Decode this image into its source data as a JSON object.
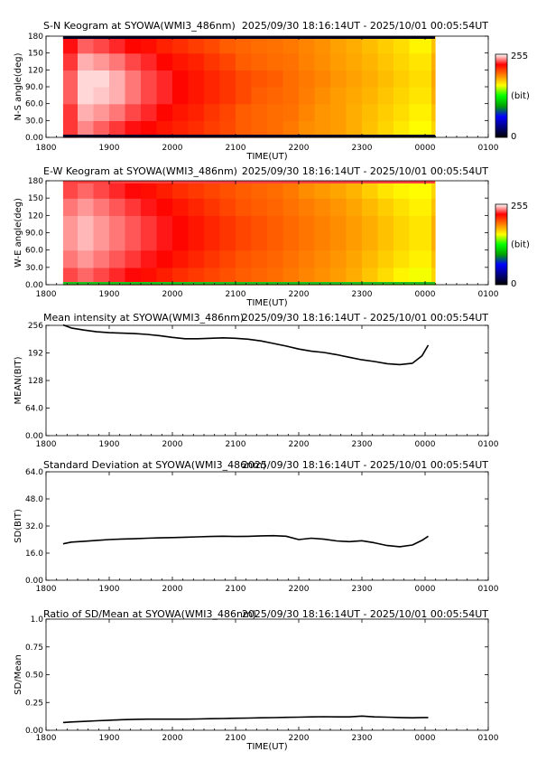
{
  "chart_data": [
    {
      "type": "heatmap",
      "title": "S-N Keogram at SYOWA(WMI3_486nm)",
      "time_range": "2025/09/30 18:16:14UT - 2025/10/01 00:05:54UT",
      "xlabel": "TIME(UT)",
      "ylabel": "N-S angle(deg)",
      "x_ticks": [
        "1800",
        "1900",
        "2000",
        "2100",
        "2200",
        "2300",
        "0000",
        "0100"
      ],
      "y_ticks": [
        "0.00",
        "30.0",
        "60.0",
        "90.0",
        "120",
        "150",
        "180"
      ],
      "xlim": [
        18,
        25
      ],
      "ylim": [
        0,
        180
      ],
      "colorbar": {
        "min_label": "0",
        "max_label": "255",
        "unit": "(bit)",
        "colors": [
          "#000000",
          "#000080",
          "#0000ff",
          "#00a000",
          "#00ff00",
          "#ffff00",
          "#ff8000",
          "#ff0000",
          "#ffffff"
        ]
      },
      "x": [
        18.27,
        18.5,
        18.75,
        19.0,
        19.25,
        19.5,
        19.75,
        20.0,
        20.25,
        20.5,
        20.75,
        21.0,
        21.25,
        21.5,
        21.75,
        22.0,
        22.25,
        22.5,
        22.75,
        23.0,
        23.25,
        23.5,
        23.75,
        24.1
      ],
      "y": [
        0,
        30,
        60,
        90,
        120,
        150,
        180
      ],
      "z": [
        [
          230,
          230,
          235,
          235,
          230,
          225
        ],
        [
          240,
          245,
          250,
          250,
          245,
          235
        ],
        [
          235,
          242,
          248,
          250,
          242,
          232
        ],
        [
          230,
          238,
          245,
          245,
          238,
          228
        ],
        [
          225,
          232,
          238,
          238,
          232,
          222
        ],
        [
          222,
          228,
          232,
          232,
          228,
          220
        ],
        [
          218,
          222,
          228,
          228,
          222,
          215
        ],
        [
          215,
          218,
          222,
          222,
          218,
          212
        ],
        [
          212,
          215,
          218,
          218,
          215,
          208
        ],
        [
          208,
          210,
          214,
          214,
          210,
          205
        ],
        [
          205,
          206,
          210,
          210,
          206,
          200
        ],
        [
          200,
          200,
          205,
          205,
          200,
          198
        ],
        [
          198,
          198,
          200,
          202,
          198,
          196
        ],
        [
          196,
          196,
          198,
          200,
          196,
          195
        ],
        [
          193,
          195,
          196,
          196,
          195,
          193
        ],
        [
          188,
          190,
          192,
          193,
          191,
          190
        ],
        [
          186,
          186,
          188,
          190,
          188,
          187
        ],
        [
          184,
          184,
          184,
          186,
          184,
          183
        ],
        [
          180,
          180,
          181,
          183,
          181,
          180
        ],
        [
          175,
          176,
          178,
          180,
          178,
          176
        ],
        [
          170,
          172,
          174,
          176,
          174,
          172
        ],
        [
          165,
          168,
          170,
          172,
          170,
          168
        ],
        [
          160,
          163,
          166,
          168,
          166,
          162
        ],
        [
          170,
          175,
          180,
          182,
          180,
          175
        ]
      ]
    },
    {
      "type": "heatmap",
      "title": "E-W Keogram at SYOWA(WMI3_486nm)",
      "time_range": "2025/09/30 18:16:14UT - 2025/10/01 00:05:54UT",
      "xlabel": "TIME(UT)",
      "ylabel": "W-E angle(deg)",
      "x_ticks": [
        "1800",
        "1900",
        "2000",
        "2100",
        "2200",
        "2300",
        "0000",
        "0100"
      ],
      "y_ticks": [
        "0.00",
        "30.0",
        "60.0",
        "90.0",
        "120",
        "150",
        "180"
      ],
      "xlim": [
        18,
        25
      ],
      "ylim": [
        0,
        180
      ],
      "colorbar": {
        "min_label": "0",
        "max_label": "255",
        "unit": "(bit)",
        "colors": [
          "#000000",
          "#000080",
          "#0000ff",
          "#00a000",
          "#00ff00",
          "#ffff00",
          "#ff8000",
          "#ff0000",
          "#ffffff"
        ]
      },
      "x": [
        18.27,
        18.5,
        18.75,
        19.0,
        19.25,
        19.5,
        19.75,
        20.0,
        20.25,
        20.5,
        20.75,
        21.0,
        21.25,
        21.5,
        21.75,
        22.0,
        22.25,
        22.5,
        22.75,
        23.0,
        23.25,
        23.5,
        23.75,
        24.1
      ],
      "y": [
        0,
        30,
        60,
        90,
        120,
        150,
        180
      ],
      "z": [
        [
          232,
          238,
          242,
          242,
          238,
          232
        ],
        [
          236,
          242,
          246,
          246,
          242,
          236
        ],
        [
          232,
          238,
          242,
          242,
          238,
          232
        ],
        [
          228,
          234,
          238,
          238,
          234,
          228
        ],
        [
          224,
          230,
          234,
          234,
          230,
          224
        ],
        [
          220,
          226,
          230,
          230,
          226,
          220
        ],
        [
          216,
          222,
          226,
          226,
          222,
          216
        ],
        [
          212,
          218,
          222,
          222,
          218,
          212
        ],
        [
          209,
          214,
          218,
          218,
          214,
          209
        ],
        [
          206,
          210,
          214,
          214,
          210,
          206
        ],
        [
          203,
          206,
          210,
          210,
          206,
          203
        ],
        [
          200,
          202,
          206,
          206,
          202,
          200
        ],
        [
          198,
          200,
          203,
          203,
          200,
          198
        ],
        [
          196,
          198,
          200,
          200,
          198,
          196
        ],
        [
          193,
          195,
          197,
          197,
          195,
          193
        ],
        [
          190,
          192,
          194,
          194,
          192,
          188
        ],
        [
          187,
          189,
          191,
          191,
          189,
          185
        ],
        [
          184,
          186,
          188,
          188,
          186,
          182
        ],
        [
          180,
          182,
          184,
          184,
          182,
          178
        ],
        [
          174,
          177,
          180,
          180,
          177,
          172
        ],
        [
          168,
          172,
          175,
          175,
          172,
          166
        ],
        [
          162,
          167,
          170,
          170,
          167,
          162
        ],
        [
          158,
          163,
          166,
          166,
          163,
          160
        ],
        [
          170,
          175,
          180,
          180,
          175,
          170
        ]
      ]
    },
    {
      "type": "line",
      "title": "Mean intensity at SYOWA(WMI3_486nm)",
      "time_range": "2025/09/30 18:16:14UT - 2025/10/01 00:05:54UT",
      "xlabel": "",
      "ylabel": "MEAN(BIT)",
      "x_ticks": [
        "1800",
        "1900",
        "2000",
        "2100",
        "2200",
        "2300",
        "0000",
        "0100"
      ],
      "y_ticks": [
        "0.00",
        "64.0",
        "128",
        "192",
        "256"
      ],
      "xlim": [
        18,
        25
      ],
      "ylim": [
        0,
        256
      ],
      "x": [
        18.27,
        18.4,
        18.6,
        18.8,
        19.0,
        19.2,
        19.4,
        19.6,
        19.8,
        20.0,
        20.2,
        20.4,
        20.6,
        20.8,
        21.0,
        21.2,
        21.4,
        21.6,
        21.8,
        22.0,
        22.2,
        22.4,
        22.6,
        22.8,
        23.0,
        23.2,
        23.4,
        23.6,
        23.8,
        23.95,
        24.05
      ],
      "series": [
        {
          "values": [
            257,
            250,
            245,
            241,
            239,
            238,
            237,
            235,
            232,
            228,
            225,
            225,
            226,
            227,
            226,
            224,
            220,
            214,
            208,
            201,
            196,
            193,
            188,
            182,
            176,
            172,
            167,
            165,
            168,
            185,
            210
          ]
        }
      ]
    },
    {
      "type": "line",
      "title": "Standard Deviation at SYOWA(WMI3_486nm)",
      "time_range": "2025/09/30 18:16:14UT - 2025/10/01 00:05:54UT",
      "xlabel": "",
      "ylabel": "SD(BIT)",
      "x_ticks": [
        "1800",
        "1900",
        "2000",
        "2100",
        "2200",
        "2300",
        "0000",
        "0100"
      ],
      "y_ticks": [
        "0.00",
        "16.0",
        "32.0",
        "48.0",
        "64.0"
      ],
      "xlim": [
        18,
        25
      ],
      "ylim": [
        0,
        64
      ],
      "x": [
        18.27,
        18.4,
        18.6,
        18.8,
        19.0,
        19.2,
        19.4,
        19.6,
        19.8,
        20.0,
        20.2,
        20.4,
        20.6,
        20.8,
        21.0,
        21.2,
        21.4,
        21.6,
        21.8,
        22.0,
        22.2,
        22.4,
        22.6,
        22.8,
        23.0,
        23.2,
        23.4,
        23.6,
        23.8,
        23.95,
        24.05
      ],
      "series": [
        {
          "values": [
            21.5,
            22.5,
            23.0,
            23.5,
            24.0,
            24.3,
            24.5,
            24.8,
            25.0,
            25.2,
            25.4,
            25.6,
            25.8,
            26.0,
            25.8,
            25.9,
            26.2,
            26.3,
            26.0,
            24.0,
            24.8,
            24.2,
            23.2,
            22.8,
            23.3,
            22.1,
            20.5,
            19.8,
            20.8,
            23.5,
            26.0
          ]
        }
      ]
    },
    {
      "type": "line",
      "title": "Ratio of SD/Mean at SYOWA(WMI3_486nm)",
      "time_range": "2025/09/30 18:16:14UT - 2025/10/01 00:05:54UT",
      "xlabel": "TIME(UT)",
      "ylabel": "SD/Mean",
      "x_ticks": [
        "1800",
        "1900",
        "2000",
        "2100",
        "2200",
        "2300",
        "0000",
        "0100"
      ],
      "y_ticks": [
        "0.00",
        "0.25",
        "0.50",
        "0.75",
        "1.0"
      ],
      "xlim": [
        18,
        25
      ],
      "ylim": [
        0,
        1.0
      ],
      "x": [
        18.27,
        18.4,
        18.6,
        18.8,
        19.0,
        19.2,
        19.4,
        19.6,
        19.8,
        20.0,
        20.2,
        20.4,
        20.6,
        20.8,
        21.0,
        21.2,
        21.4,
        21.6,
        21.8,
        22.0,
        22.2,
        22.4,
        22.6,
        22.8,
        23.0,
        23.2,
        23.4,
        23.6,
        23.8,
        23.95,
        24.05
      ],
      "series": [
        {
          "values": [
            0.07,
            0.075,
            0.08,
            0.085,
            0.09,
            0.095,
            0.098,
            0.1,
            0.1,
            0.1,
            0.1,
            0.102,
            0.104,
            0.106,
            0.108,
            0.11,
            0.112,
            0.114,
            0.116,
            0.118,
            0.12,
            0.122,
            0.12,
            0.12,
            0.128,
            0.12,
            0.118,
            0.115,
            0.112,
            0.115,
            0.115
          ]
        }
      ]
    }
  ]
}
